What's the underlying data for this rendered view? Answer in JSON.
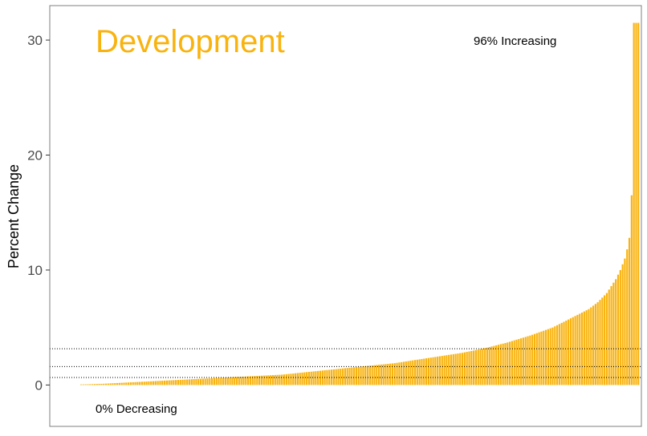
{
  "chart_data": {
    "type": "bar",
    "title": "Development",
    "ylabel": "Percent Change",
    "xlabel": "",
    "ylim": [
      -3.6,
      33.0
    ],
    "yticks": [
      0,
      10,
      20,
      30
    ],
    "ytick_labels": [
      "0",
      "10",
      "20",
      "30"
    ],
    "bar_count": 248,
    "values_sorted_ascending": [
      0.05,
      0.05,
      0.06,
      0.06,
      0.07,
      0.07,
      0.08,
      0.09,
      0.1,
      0.1,
      0.11,
      0.12,
      0.13,
      0.14,
      0.15,
      0.16,
      0.17,
      0.18,
      0.19,
      0.2,
      0.21,
      0.22,
      0.23,
      0.24,
      0.25,
      0.26,
      0.27,
      0.28,
      0.29,
      0.3,
      0.31,
      0.32,
      0.33,
      0.34,
      0.35,
      0.36,
      0.37,
      0.38,
      0.39,
      0.4,
      0.41,
      0.42,
      0.43,
      0.44,
      0.45,
      0.46,
      0.47,
      0.48,
      0.49,
      0.5,
      0.51,
      0.52,
      0.53,
      0.54,
      0.55,
      0.56,
      0.57,
      0.58,
      0.59,
      0.6,
      0.61,
      0.62,
      0.63,
      0.64,
      0.65,
      0.66,
      0.67,
      0.68,
      0.69,
      0.7,
      0.71,
      0.72,
      0.73,
      0.74,
      0.75,
      0.76,
      0.77,
      0.78,
      0.79,
      0.8,
      0.81,
      0.82,
      0.83,
      0.84,
      0.85,
      0.86,
      0.87,
      0.88,
      0.89,
      0.9,
      0.92,
      0.94,
      0.96,
      0.98,
      1.0,
      1.02,
      1.04,
      1.06,
      1.08,
      1.1,
      1.12,
      1.14,
      1.16,
      1.18,
      1.2,
      1.22,
      1.24,
      1.26,
      1.28,
      1.3,
      1.32,
      1.34,
      1.36,
      1.38,
      1.4,
      1.42,
      1.44,
      1.46,
      1.48,
      1.5,
      1.52,
      1.54,
      1.56,
      1.58,
      1.6,
      1.62,
      1.64,
      1.66,
      1.68,
      1.7,
      1.72,
      1.74,
      1.76,
      1.78,
      1.8,
      1.82,
      1.84,
      1.86,
      1.88,
      1.9,
      1.93,
      1.96,
      1.99,
      2.02,
      2.05,
      2.08,
      2.11,
      2.14,
      2.17,
      2.2,
      2.23,
      2.26,
      2.29,
      2.32,
      2.35,
      2.38,
      2.41,
      2.44,
      2.47,
      2.5,
      2.53,
      2.56,
      2.59,
      2.62,
      2.65,
      2.68,
      2.71,
      2.74,
      2.77,
      2.8,
      2.84,
      2.88,
      2.92,
      2.96,
      3.0,
      3.04,
      3.08,
      3.12,
      3.16,
      3.2,
      3.25,
      3.3,
      3.35,
      3.4,
      3.45,
      3.5,
      3.55,
      3.6,
      3.65,
      3.7,
      3.76,
      3.82,
      3.88,
      3.94,
      4.0,
      4.06,
      4.12,
      4.18,
      4.24,
      4.3,
      4.37,
      4.44,
      4.51,
      4.58,
      4.65,
      4.72,
      4.79,
      4.86,
      4.93,
      5.0,
      5.1,
      5.2,
      5.3,
      5.4,
      5.5,
      5.6,
      5.7,
      5.8,
      5.9,
      6.0,
      6.1,
      6.2,
      6.3,
      6.4,
      6.5,
      6.6,
      6.75,
      6.9,
      7.05,
      7.2,
      7.4,
      7.6,
      7.8,
      8.0,
      8.3,
      8.6,
      8.9,
      9.2,
      9.6,
      10.0,
      10.5,
      11.0,
      11.8,
      12.8,
      16.5,
      31.5,
      31.5,
      31.5
    ],
    "reference_lines": [
      0.65,
      1.6,
      3.15
    ],
    "annotations": {
      "increasing": "96% Increasing",
      "decreasing": "0% Decreasing"
    },
    "grid": false,
    "legend": "none",
    "bar_color": "#F9B30F"
  },
  "colors": {
    "bar": "#F9B30F",
    "title": "#F9B30F",
    "axis_text": "#4d4d4d",
    "frame": "#7f7f7f"
  }
}
